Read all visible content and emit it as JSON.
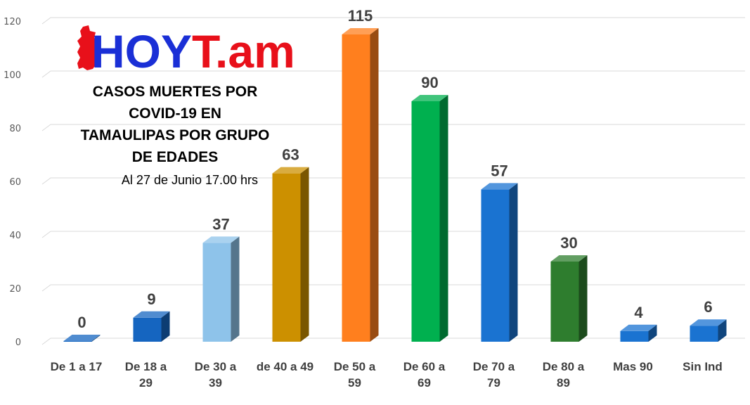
{
  "logo": {
    "text_main": "HOY",
    "text_accent": "T.am",
    "main_color": "#1a2fd6",
    "accent_color": "#e8101a"
  },
  "chart_data": {
    "type": "bar",
    "title_lines": [
      "CASOS MUERTES POR",
      "COVID-19 EN",
      "TAMAULIPAS POR GRUPO",
      "DE EDADES"
    ],
    "subtitle": "Al 27 de Junio 17.00 hrs",
    "categories": [
      [
        "De 1 a 17"
      ],
      [
        "De 18 a",
        "29"
      ],
      [
        "De 30 a",
        "39"
      ],
      [
        "de 40 a 49"
      ],
      [
        "De 50 a",
        "59"
      ],
      [
        "De 60 a",
        "69"
      ],
      [
        "De 70 a",
        "79"
      ],
      [
        "De 80 a",
        "89"
      ],
      [
        "Mas 90"
      ],
      [
        "Sin Ind"
      ]
    ],
    "values": [
      0,
      9,
      37,
      63,
      115,
      90,
      57,
      30,
      4,
      6
    ],
    "colors": [
      "#1565c0",
      "#1565c0",
      "#8ec3ea",
      "#cc9000",
      "#ff7f1e",
      "#00b04f",
      "#1a73d1",
      "#2e7d2e",
      "#1a73d1",
      "#1a73d1"
    ],
    "ylim": [
      0,
      120
    ],
    "yticks": [
      0,
      20,
      40,
      60,
      80,
      100,
      120
    ],
    "grid": true,
    "legend": "none",
    "xlabel": "",
    "ylabel": ""
  }
}
